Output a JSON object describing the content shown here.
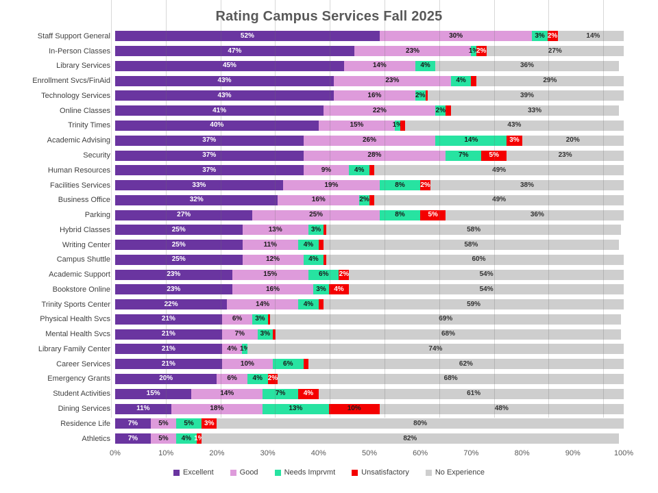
{
  "chart_data": {
    "type": "bar",
    "orientation": "horizontal",
    "stacked": true,
    "title": "Rating Campus Services Fall 2025",
    "title_color": "#595959",
    "grid": true,
    "legend_position": "bottom",
    "xlim": [
      0,
      100
    ],
    "x_ticks": [
      "0%",
      "10%",
      "20%",
      "30%",
      "40%",
      "50%",
      "60%",
      "70%",
      "80%",
      "90%",
      "100%"
    ],
    "categories": [
      "Staff Support General",
      "In-Person Classes",
      "Library Services",
      "Enrollment Svcs/FinAid",
      "Technology Services",
      "Online Classes",
      "Trinity Times",
      "Academic Advising",
      "Security",
      "Human Resources",
      "Facilities Services",
      "Business Office",
      "Parking",
      "Hybrid Classes",
      "Writing Center",
      "Campus Shuttle",
      "Academic Support",
      "Bookstore Online",
      "Trinity Sports Center",
      "Physical Health Svcs",
      "Mental Health Svcs",
      "Library Family Center",
      "Career Services",
      "Emergency Grants",
      "Student Activities",
      "Dining Services",
      "Residence Life",
      "Athletics"
    ],
    "series": [
      {
        "name": "Excellent",
        "color": "#6A35A0",
        "label_color": "#ffffff",
        "values": [
          52,
          47,
          45,
          43,
          43,
          41,
          40,
          37,
          37,
          37,
          33,
          32,
          27,
          25,
          25,
          25,
          23,
          23,
          22,
          21,
          21,
          21,
          21,
          20,
          15,
          11,
          7,
          7
        ],
        "labels": [
          "52%",
          "47%",
          "45%",
          "43%",
          "43%",
          "41%",
          "40%",
          "37%",
          "37%",
          "37%",
          "33%",
          "32%",
          "27%",
          "25%",
          "25%",
          "25%",
          "23%",
          "23%",
          "22%",
          "21%",
          "21%",
          "21%",
          "21%",
          "20%",
          "15%",
          "11%",
          "7%",
          "7%"
        ]
      },
      {
        "name": "Good",
        "color": "#DE9BDB",
        "label_color": "#1a1a1a",
        "values": [
          30,
          23,
          14,
          23,
          16,
          22,
          15,
          26,
          28,
          9,
          19,
          16,
          25,
          13,
          11,
          12,
          15,
          16,
          14,
          6,
          7,
          4,
          10,
          6,
          14,
          18,
          5,
          5
        ],
        "labels": [
          "30%",
          "23%",
          "14%",
          "23%",
          "16%",
          "22%",
          "15%",
          "26%",
          "28%",
          "9%",
          "19%",
          "16%",
          "25%",
          "13%",
          "11%",
          "12%",
          "15%",
          "16%",
          "14%",
          "6%",
          "7%",
          "4%",
          "10%",
          "6%",
          "14%",
          "18%",
          "5%",
          "5%"
        ]
      },
      {
        "name": "Needs Imprvmt",
        "color": "#27E3A1",
        "label_color": "#1a1a1a",
        "values": [
          3,
          1,
          4,
          4,
          2,
          2,
          1,
          14,
          7,
          4,
          8,
          2,
          8,
          3,
          4,
          4,
          6,
          3,
          4,
          3,
          3,
          1,
          6,
          4,
          7,
          13,
          5,
          4
        ],
        "labels": [
          "3%",
          "1%",
          "4%",
          "4%",
          "2%",
          "2%",
          "1%",
          "14%",
          "7%",
          "4%",
          "8%",
          "2%",
          "8%",
          "3%",
          "4%",
          "4%",
          "6%",
          "3%",
          "4%",
          "3%",
          "3%",
          "1%",
          "6%",
          "4%",
          "7%",
          "13%",
          "5%",
          "4%"
        ]
      },
      {
        "name": "Unsatisfactory",
        "color": "#F40000",
        "label_color": "#ffffff",
        "label_dark_indices": [
          25
        ],
        "values": [
          2,
          2,
          0,
          1,
          0.5,
          1,
          1,
          3,
          5,
          1,
          2,
          1,
          5,
          0.5,
          1,
          0.5,
          2,
          4,
          1,
          0.5,
          0.5,
          0,
          1,
          2,
          4,
          10,
          3,
          1
        ],
        "labels": [
          "2%",
          "2%",
          "",
          "",
          "",
          "",
          "",
          "3%",
          "5%",
          "",
          "2%",
          "",
          "5%",
          "",
          "",
          "",
          "2%",
          "4%",
          "",
          "",
          "",
          "",
          "",
          "2%",
          "4%",
          "10%",
          "3%",
          "1%"
        ]
      },
      {
        "name": "No Experience",
        "color": "#CECECE",
        "label_color": "#333333",
        "values": [
          14,
          27,
          36,
          29,
          39,
          33,
          43,
          20,
          23,
          49,
          38,
          49,
          36,
          58,
          58,
          60,
          54,
          54,
          59,
          69,
          68,
          74,
          62,
          68,
          61,
          48,
          80,
          82
        ],
        "labels": [
          "14%",
          "27%",
          "36%",
          "29%",
          "39%",
          "33%",
          "43%",
          "20%",
          "23%",
          "49%",
          "38%",
          "49%",
          "36%",
          "58%",
          "58%",
          "60%",
          "54%",
          "54%",
          "59%",
          "69%",
          "68%",
          "74%",
          "62%",
          "68%",
          "61%",
          "48%",
          "80%",
          "82%"
        ]
      }
    ]
  }
}
